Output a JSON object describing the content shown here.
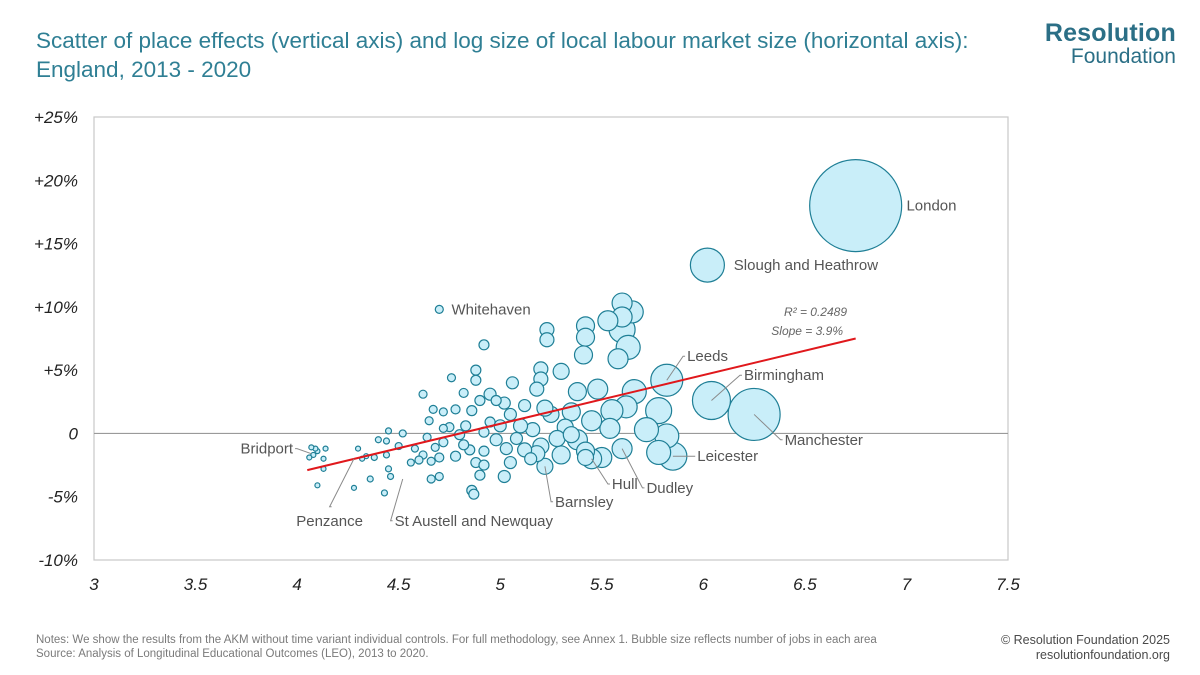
{
  "title": "Scatter of place effects (vertical axis) and log size of local labour market size (horizontal axis): England, 2013 - 2020",
  "logo": {
    "line1": "Resolution",
    "line2": "Foundation"
  },
  "notes": {
    "line1": "Notes: We show the results from the AKM without time variant individual controls. For full methodology, see Annex 1. Bubble size reflects number of jobs in each area",
    "line2": "Source: Analysis of Longitudinal Educational Outcomes (LEO), 2013 to 2020."
  },
  "copyright": {
    "line1": "© Resolution Foundation 2025",
    "line2": "resolutionfoundation.org"
  },
  "colors": {
    "title": "#2f7f94",
    "bubble_fill": "#c9eef9",
    "bubble_stroke": "#1f7f96",
    "trend": "#e0181c",
    "plot_border": "#c8c8c8",
    "zero_line": "#9a9a9a"
  },
  "chart_data": {
    "type": "scatter",
    "xlim": [
      3,
      7.5
    ],
    "ylim": [
      -10,
      25
    ],
    "x_ticks": [
      "3",
      "3.5",
      "4",
      "4.5",
      "5",
      "5.5",
      "6",
      "6.5",
      "7",
      "7.5"
    ],
    "x_tick_values": [
      3,
      3.5,
      4,
      4.5,
      5,
      5.5,
      6,
      6.5,
      7,
      7.5
    ],
    "y_ticks": [
      "+25%",
      "+20%",
      "+15%",
      "+10%",
      "+5%",
      "0",
      "-5%",
      "-10%"
    ],
    "y_tick_values": [
      25,
      20,
      15,
      10,
      5,
      0,
      -5,
      -10
    ],
    "grid": false,
    "trendline": {
      "x": [
        4.05,
        6.75
      ],
      "y": [
        -2.9,
        7.5
      ]
    },
    "stats": {
      "r2": "R² = 0.2489",
      "slope": "Slope = 3.9%"
    },
    "labels": [
      {
        "text": "London",
        "x": 6.75,
        "y": 18.0,
        "lx": 7.0,
        "ly": 18.0,
        "anchor": "start",
        "leader": false
      },
      {
        "text": "Slough and Heathrow",
        "x": 6.02,
        "y": 13.3,
        "lx": 6.15,
        "ly": 13.3,
        "anchor": "start",
        "leader": false
      },
      {
        "text": "Whitehaven",
        "x": 4.7,
        "y": 9.8,
        "lx": 4.76,
        "ly": 9.8,
        "anchor": "start",
        "leader": false
      },
      {
        "text": "Leeds",
        "x": 5.82,
        "y": 4.2,
        "lx": 5.92,
        "ly": 6.1,
        "anchor": "start",
        "leader": true
      },
      {
        "text": "Birmingham",
        "x": 6.04,
        "y": 2.6,
        "lx": 6.2,
        "ly": 4.6,
        "anchor": "start",
        "leader": true
      },
      {
        "text": "Manchester",
        "x": 6.25,
        "y": 1.5,
        "lx": 6.4,
        "ly": -0.5,
        "anchor": "start",
        "leader": true
      },
      {
        "text": "Leicester",
        "x": 5.85,
        "y": -1.8,
        "lx": 5.97,
        "ly": -1.8,
        "anchor": "start",
        "leader": true
      },
      {
        "text": "Dudley",
        "x": 5.6,
        "y": -1.2,
        "lx": 5.72,
        "ly": -4.3,
        "anchor": "start",
        "leader": true
      },
      {
        "text": "Hull",
        "x": 5.45,
        "y": -2.0,
        "lx": 5.55,
        "ly": -4.0,
        "anchor": "start",
        "leader": true
      },
      {
        "text": "Barnsley",
        "x": 5.22,
        "y": -2.6,
        "lx": 5.27,
        "ly": -5.4,
        "anchor": "start",
        "leader": true
      },
      {
        "text": "St Austell and Newquay",
        "x": 4.52,
        "y": -3.6,
        "lx": 4.48,
        "ly": -6.9,
        "anchor": "start",
        "leader": true
      },
      {
        "text": "Penzance",
        "x": 4.28,
        "y": -2.0,
        "lx": 4.16,
        "ly": -6.9,
        "anchor": "middle",
        "leader": true
      },
      {
        "text": "Bridport",
        "x": 4.07,
        "y": -1.6,
        "lx": 3.98,
        "ly": -1.2,
        "anchor": "end",
        "leader": true
      }
    ],
    "points": [
      [
        6.75,
        18.0,
        46
      ],
      [
        6.02,
        13.3,
        17
      ],
      [
        6.25,
        1.5,
        26
      ],
      [
        6.04,
        2.6,
        19
      ],
      [
        5.82,
        4.2,
        16
      ],
      [
        5.78,
        1.8,
        13
      ],
      [
        5.85,
        -1.8,
        14
      ],
      [
        5.82,
        -0.2,
        12
      ],
      [
        5.78,
        -1.5,
        12
      ],
      [
        5.72,
        0.3,
        12
      ],
      [
        5.66,
        3.3,
        12
      ],
      [
        5.62,
        2.1,
        11
      ],
      [
        5.63,
        6.8,
        12
      ],
      [
        5.6,
        8.2,
        13
      ],
      [
        5.65,
        9.6,
        11
      ],
      [
        5.6,
        10.3,
        10
      ],
      [
        5.6,
        9.2,
        10
      ],
      [
        5.53,
        8.9,
        10
      ],
      [
        5.58,
        5.9,
        10
      ],
      [
        5.55,
        1.8,
        11
      ],
      [
        5.54,
        0.4,
        10
      ],
      [
        5.48,
        3.5,
        10
      ],
      [
        5.45,
        1.0,
        10
      ],
      [
        5.6,
        -1.2,
        10
      ],
      [
        5.5,
        -1.9,
        10
      ],
      [
        5.45,
        -2.0,
        10
      ],
      [
        5.42,
        -1.4,
        9
      ],
      [
        5.38,
        -0.5,
        10
      ],
      [
        5.42,
        8.5,
        9
      ],
      [
        5.42,
        7.6,
        9
      ],
      [
        5.41,
        6.2,
        9
      ],
      [
        5.38,
        3.3,
        9
      ],
      [
        5.35,
        1.7,
        9
      ],
      [
        5.32,
        0.5,
        8
      ],
      [
        5.3,
        -1.7,
        9
      ],
      [
        5.28,
        -0.4,
        8
      ],
      [
        5.25,
        1.5,
        8
      ],
      [
        5.22,
        2.0,
        8
      ],
      [
        5.22,
        -2.6,
        8
      ],
      [
        5.2,
        -1.0,
        8
      ],
      [
        5.18,
        -1.6,
        8
      ],
      [
        5.16,
        0.3,
        7
      ],
      [
        5.3,
        4.9,
        8
      ],
      [
        5.23,
        8.2,
        7
      ],
      [
        5.23,
        7.4,
        7
      ],
      [
        5.2,
        5.1,
        7
      ],
      [
        5.2,
        4.3,
        7
      ],
      [
        5.18,
        3.5,
        7
      ],
      [
        5.35,
        -0.1,
        8
      ],
      [
        5.42,
        -1.9,
        8
      ],
      [
        5.12,
        -1.3,
        7
      ],
      [
        5.1,
        0.6,
        7
      ],
      [
        5.12,
        2.2,
        6
      ],
      [
        5.06,
        4.0,
        6
      ],
      [
        5.02,
        2.4,
        6
      ],
      [
        5.05,
        1.5,
        6
      ],
      [
        5.0,
        0.6,
        6
      ],
      [
        5.08,
        -0.4,
        6
      ],
      [
        4.98,
        -0.5,
        6
      ],
      [
        5.03,
        -1.2,
        6
      ],
      [
        5.02,
        -3.4,
        6
      ],
      [
        5.15,
        -2.0,
        6
      ],
      [
        5.05,
        -2.3,
        6
      ],
      [
        4.95,
        3.1,
        6
      ],
      [
        4.98,
        2.6,
        5
      ],
      [
        4.95,
        0.9,
        5
      ],
      [
        4.92,
        0.1,
        5
      ],
      [
        4.92,
        -1.4,
        5
      ],
      [
        4.88,
        -2.3,
        5
      ],
      [
        4.92,
        -2.5,
        5
      ],
      [
        4.9,
        -3.3,
        5
      ],
      [
        4.85,
        -1.3,
        5
      ],
      [
        4.92,
        7.0,
        5
      ],
      [
        4.88,
        5.0,
        5
      ],
      [
        4.88,
        4.2,
        5
      ],
      [
        4.9,
        2.6,
        5
      ],
      [
        4.86,
        1.8,
        5
      ],
      [
        4.83,
        0.6,
        5
      ],
      [
        4.8,
        -0.1,
        5
      ],
      [
        4.82,
        -0.9,
        5
      ],
      [
        4.78,
        -1.8,
        5
      ],
      [
        4.86,
        -4.5,
        5
      ],
      [
        4.87,
        -4.8,
        5
      ],
      [
        4.82,
        3.2,
        4.5
      ],
      [
        4.78,
        1.9,
        4.5
      ],
      [
        4.75,
        0.5,
        4.5
      ],
      [
        4.72,
        -0.7,
        4.5
      ],
      [
        4.7,
        -1.9,
        4.5
      ],
      [
        4.7,
        9.8,
        4
      ],
      [
        4.76,
        4.4,
        4
      ],
      [
        4.72,
        1.7,
        4
      ],
      [
        4.72,
        0.4,
        4
      ],
      [
        4.68,
        -1.1,
        4
      ],
      [
        4.66,
        -2.2,
        4
      ],
      [
        4.7,
        -3.4,
        4
      ],
      [
        4.67,
        1.9,
        4
      ],
      [
        4.65,
        1.0,
        4
      ],
      [
        4.62,
        3.1,
        4
      ],
      [
        4.64,
        -0.3,
        4
      ],
      [
        4.62,
        -1.7,
        4
      ],
      [
        4.6,
        -2.1,
        4
      ],
      [
        4.66,
        -3.6,
        4
      ],
      [
        4.58,
        -1.2,
        3.5
      ],
      [
        4.56,
        -2.3,
        3.5
      ],
      [
        4.5,
        -1.0,
        3.5
      ],
      [
        4.52,
        0.0,
        3.5
      ],
      [
        4.45,
        0.2,
        3
      ],
      [
        4.44,
        -0.6,
        3
      ],
      [
        4.44,
        -1.7,
        3
      ],
      [
        4.45,
        -2.8,
        3
      ],
      [
        4.46,
        -3.4,
        3
      ],
      [
        4.43,
        -4.7,
        3
      ],
      [
        4.4,
        -0.5,
        3
      ],
      [
        4.38,
        -1.9,
        3
      ],
      [
        4.36,
        -3.6,
        3
      ],
      [
        4.34,
        -1.8,
        2.5
      ],
      [
        4.32,
        -2.0,
        2.5
      ],
      [
        4.3,
        -1.2,
        2.5
      ],
      [
        4.28,
        -4.3,
        2.5
      ],
      [
        4.14,
        -1.2,
        2.5
      ],
      [
        4.13,
        -2.0,
        2.5
      ],
      [
        4.13,
        -2.8,
        2.5
      ],
      [
        4.1,
        -1.4,
        2.5
      ],
      [
        4.09,
        -1.2,
        2.5
      ],
      [
        4.08,
        -1.7,
        2.5
      ],
      [
        4.07,
        -1.1,
        2.5
      ],
      [
        4.06,
        -1.9,
        2.5
      ],
      [
        4.1,
        -4.1,
        2.5
      ]
    ]
  }
}
